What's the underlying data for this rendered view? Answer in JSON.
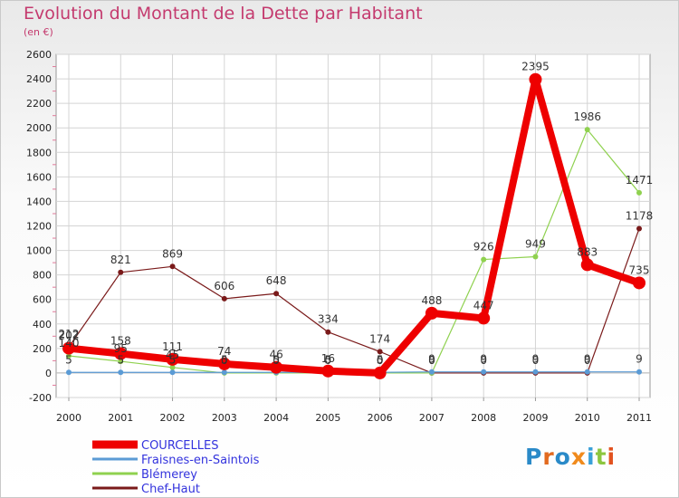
{
  "title": "Evolution du Montant de la Dette par Habitant",
  "unit": "(en €)",
  "logo": {
    "text": "Proxiti",
    "letters": [
      {
        "ch": "P",
        "color": "#2a8ac8"
      },
      {
        "ch": "r",
        "color": "#e26a1f"
      },
      {
        "ch": "o",
        "color": "#2a8ac8"
      },
      {
        "ch": "x",
        "color": "#f08a1c"
      },
      {
        "ch": "i",
        "color": "#39a0d8"
      },
      {
        "ch": "t",
        "color": "#8cc63f"
      },
      {
        "ch": "i",
        "color": "#e2521f"
      }
    ]
  },
  "chart_data": {
    "type": "line",
    "title": "Evolution du Montant de la Dette par Habitant",
    "ylabel": "(en €)",
    "xlabel": "",
    "x": [
      "2000",
      "2001",
      "2002",
      "2003",
      "2004",
      "2005",
      "2006",
      "2007",
      "2008",
      "2009",
      "2010",
      "2011"
    ],
    "ylim": [
      -200,
      2600
    ],
    "yticks": [
      -200,
      0,
      200,
      400,
      600,
      800,
      1000,
      1200,
      1400,
      1600,
      1800,
      2000,
      2200,
      2400,
      2600
    ],
    "grid": true,
    "legend": "bottom-left",
    "series": [
      {
        "name": "Chef-Haut",
        "color": "#7a1a1a",
        "width": 1.2,
        "marker": 3,
        "values": [
          212,
          821,
          869,
          606,
          648,
          334,
          174,
          0,
          0,
          0,
          0,
          1178
        ],
        "labels": [
          "212",
          "821",
          "869",
          "606",
          "648",
          "334",
          "174",
          "0",
          "0",
          "0",
          "0",
          "1178"
        ]
      },
      {
        "name": "Blémerey",
        "color": "#8fd14f",
        "width": 1.2,
        "marker": 3,
        "values": [
          140,
          95,
          45,
          0,
          0,
          0,
          0,
          0,
          926,
          949,
          1986,
          1471
        ],
        "labels": [
          "140",
          "95",
          "45",
          "0",
          "0",
          "0",
          "0",
          "0",
          "926",
          "949",
          "1986",
          "1471"
        ]
      },
      {
        "name": "Fraisnes-en-Saintois",
        "color": "#5b9bd5",
        "width": 1.2,
        "marker": 3,
        "values": [
          5,
          5,
          5,
          5,
          5,
          5,
          5,
          9,
          9,
          9,
          9,
          9
        ],
        "labels": [
          "5",
          "5",
          "5",
          "5",
          "5",
          "5",
          "5",
          "9",
          "9",
          "9",
          "9",
          "9"
        ]
      },
      {
        "name": "COURCELLES",
        "color": "#ee0000",
        "width": 8,
        "marker": 7,
        "values": [
          202,
          158,
          111,
          74,
          46,
          16,
          0,
          488,
          447,
          2395,
          883,
          735
        ],
        "labels": [
          "202",
          "158",
          "111",
          "74",
          "46",
          "16",
          "0",
          "488",
          "447",
          "2395",
          "883",
          "735"
        ]
      }
    ],
    "legend_order": [
      "COURCELLES",
      "Fraisnes-en-Saintois",
      "Blémerey",
      "Chef-Haut"
    ]
  }
}
